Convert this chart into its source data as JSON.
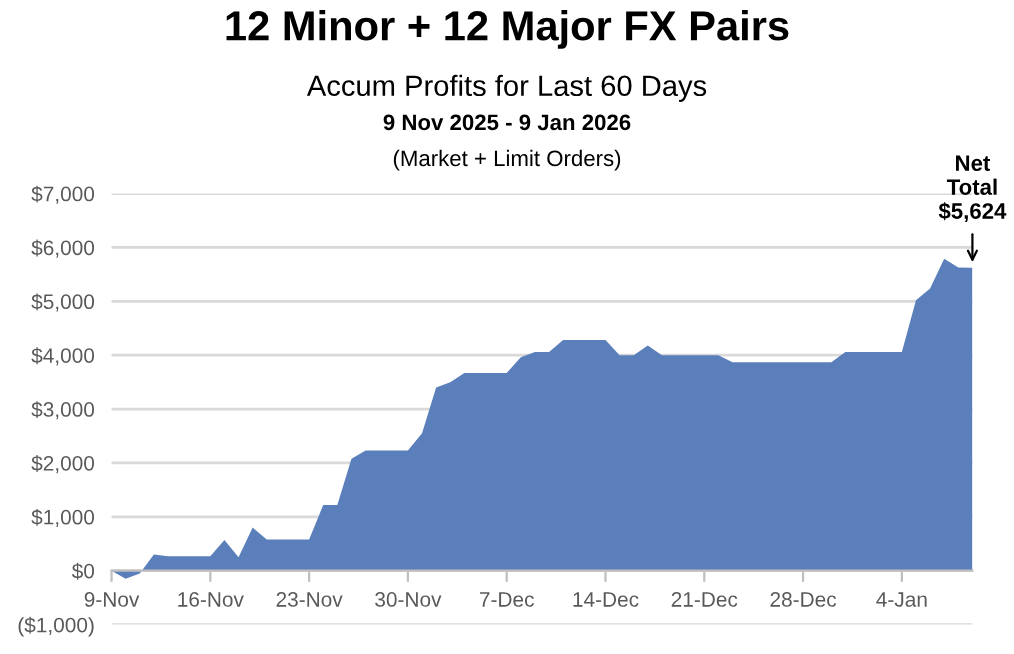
{
  "chart_data": {
    "type": "area",
    "title": "12 Minor + 12 Major FX Pairs",
    "subtitle": "Accum Profits for Last 60 Days",
    "annotations": [
      "9 Nov 2025 - 9 Jan 2026",
      "(Market + Limit Orders)",
      {
        "text": "Net\nTotal\n$5,624",
        "x": "2026-01-09",
        "y": 5624
      }
    ],
    "x": [
      "2025-11-09",
      "2025-11-10",
      "2025-11-11",
      "2025-11-12",
      "2025-11-13",
      "2025-11-14",
      "2025-11-15",
      "2025-11-16",
      "2025-11-17",
      "2025-11-18",
      "2025-11-19",
      "2025-11-20",
      "2025-11-21",
      "2025-11-22",
      "2025-11-23",
      "2025-11-24",
      "2025-11-25",
      "2025-11-26",
      "2025-11-27",
      "2025-11-28",
      "2025-11-29",
      "2025-11-30",
      "2025-12-01",
      "2025-12-02",
      "2025-12-03",
      "2025-12-04",
      "2025-12-05",
      "2025-12-06",
      "2025-12-07",
      "2025-12-08",
      "2025-12-09",
      "2025-12-10",
      "2025-12-11",
      "2025-12-12",
      "2025-12-13",
      "2025-12-14",
      "2025-12-15",
      "2025-12-16",
      "2025-12-17",
      "2025-12-18",
      "2025-12-19",
      "2025-12-20",
      "2025-12-21",
      "2025-12-22",
      "2025-12-23",
      "2025-12-24",
      "2025-12-25",
      "2025-12-26",
      "2025-12-27",
      "2025-12-28",
      "2025-12-29",
      "2025-12-30",
      "2025-12-31",
      "2026-01-01",
      "2026-01-02",
      "2026-01-03",
      "2026-01-04",
      "2026-01-05",
      "2026-01-06",
      "2026-01-07",
      "2026-01-08",
      "2026-01-09"
    ],
    "values": [
      0,
      -150,
      -50,
      300,
      270,
      270,
      270,
      270,
      570,
      250,
      800,
      580,
      580,
      580,
      580,
      1220,
      1220,
      2080,
      2230,
      2230,
      2230,
      2230,
      2550,
      3400,
      3500,
      3670,
      3670,
      3670,
      3670,
      3960,
      4060,
      4060,
      4280,
      4280,
      4280,
      4280,
      4000,
      4000,
      4180,
      4000,
      4000,
      4000,
      4000,
      4000,
      3870,
      3870,
      3870,
      3870,
      3870,
      3870,
      3870,
      3870,
      4060,
      4060,
      4060,
      4060,
      4060,
      5020,
      5240,
      5790,
      5630,
      5624
    ],
    "color": "#5b7fba",
    "xlim": [
      "2025-11-09",
      "2026-01-09"
    ],
    "xticks": [
      {
        "value": "2025-11-09",
        "label": "9-Nov"
      },
      {
        "value": "2025-11-16",
        "label": "16-Nov"
      },
      {
        "value": "2025-11-23",
        "label": "23-Nov"
      },
      {
        "value": "2025-11-30",
        "label": "30-Nov"
      },
      {
        "value": "2025-12-07",
        "label": "7-Dec"
      },
      {
        "value": "2025-12-14",
        "label": "14-Dec"
      },
      {
        "value": "2025-12-21",
        "label": "21-Dec"
      },
      {
        "value": "2025-12-28",
        "label": "28-Dec"
      },
      {
        "value": "2026-01-04",
        "label": "4-Jan"
      }
    ],
    "ylim": [
      -1000,
      7000
    ],
    "yticks": [
      {
        "value": -1000,
        "label": "($1,000)"
      },
      {
        "value": 0,
        "label": "$0"
      },
      {
        "value": 1000,
        "label": "$1,000"
      },
      {
        "value": 2000,
        "label": "$2,000"
      },
      {
        "value": 3000,
        "label": "$3,000"
      },
      {
        "value": 4000,
        "label": "$4,000"
      },
      {
        "value": 5000,
        "label": "$5,000"
      },
      {
        "value": 6000,
        "label": "$6,000"
      },
      {
        "value": 7000,
        "label": "$7,000"
      }
    ],
    "grid": "y"
  }
}
